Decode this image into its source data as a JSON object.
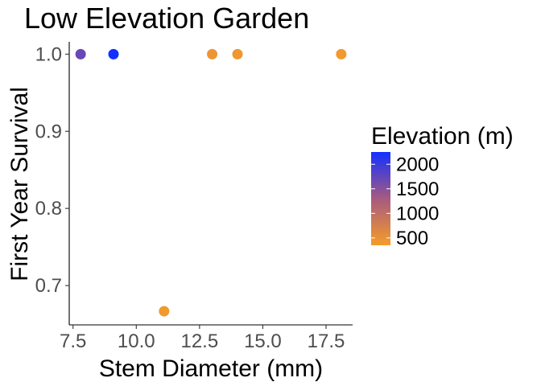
{
  "chart_data": {
    "type": "scatter",
    "title": "Low Elevation Garden",
    "xlabel": "Stem Diameter (mm)",
    "ylabel": "First Year Survival",
    "xlim": [
      7.35,
      18.55
    ],
    "ylim": [
      0.649,
      1.016
    ],
    "xticks": [
      7.5,
      10.0,
      12.5,
      15.0,
      17.5
    ],
    "xtick_labels": [
      "7.5",
      "10.0",
      "12.5",
      "15.0",
      "17.5"
    ],
    "yticks": [
      0.7,
      0.8,
      0.9,
      1.0
    ],
    "ytick_labels": [
      "0.7",
      "0.8",
      "0.9",
      "1.0"
    ],
    "grid": false,
    "points": [
      {
        "x": 7.8,
        "y": 1.0,
        "elevation": 1700
      },
      {
        "x": 9.1,
        "y": 1.0,
        "elevation": 2250
      },
      {
        "x": 11.1,
        "y": 0.6667,
        "elevation": 400
      },
      {
        "x": 13.0,
        "y": 1.0,
        "elevation": 450
      },
      {
        "x": 14.0,
        "y": 1.0,
        "elevation": 420
      },
      {
        "x": 18.1,
        "y": 1.0,
        "elevation": 400
      }
    ],
    "color_scale": {
      "title": "Elevation (m)",
      "min": 350,
      "max": 2250,
      "low_color": "#f59c2a",
      "high_color": "#1230ff",
      "breaks": [
        500,
        1000,
        1500,
        2000
      ],
      "break_labels": [
        "500",
        "1000",
        "1500",
        "2000"
      ],
      "legend_position": "right"
    }
  }
}
